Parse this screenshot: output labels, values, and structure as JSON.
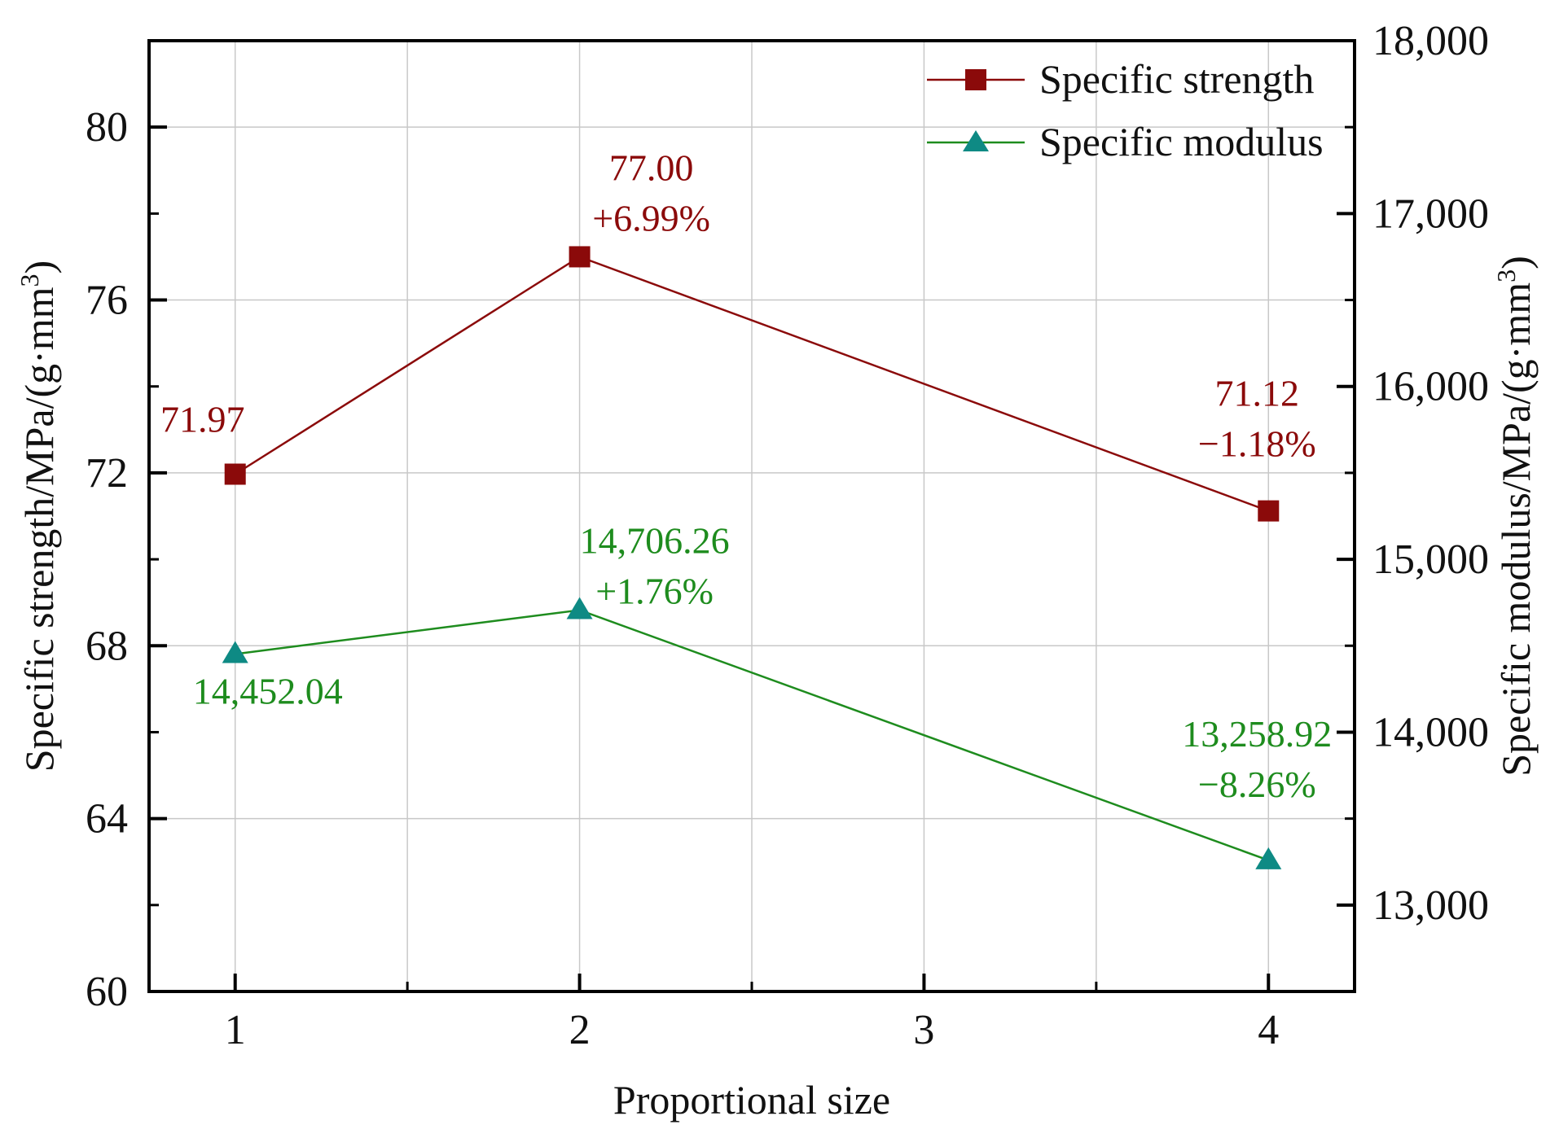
{
  "chart_data": {
    "type": "line",
    "title": "",
    "xlabel": "Proportional size",
    "ylabel_left": "Specific strength/MPa/(g·mm",
    "ylabel_left_sup": "3",
    "ylabel_left_close": ")",
    "ylabel_right": "Specific modulus/MPa/(g·mm",
    "ylabel_right_sup": "3",
    "ylabel_right_close": ")",
    "x": [
      1,
      2,
      4
    ],
    "xlim": [
      0.75,
      4.25
    ],
    "xticks": [
      1,
      2,
      3,
      4
    ],
    "xtick_labels": [
      "1",
      "2",
      "3",
      "4"
    ],
    "ylim_left": [
      60,
      82
    ],
    "yticks_left": [
      60,
      64,
      68,
      72,
      76,
      80
    ],
    "ytick_labels_left": [
      "60",
      "64",
      "68",
      "72",
      "76",
      "80"
    ],
    "ylim_right": [
      12500,
      18000
    ],
    "yticks_right": [
      13000,
      14000,
      15000,
      16000,
      17000,
      18000
    ],
    "ytick_labels_right": [
      "13,000",
      "14,000",
      "15,000",
      "16,000",
      "17,000",
      "18,000"
    ],
    "grid": true,
    "legend_position": "top-right",
    "series": [
      {
        "name": "Specific strength",
        "axis": "left",
        "marker": "square",
        "color": "#8B0A0A",
        "values": [
          71.97,
          77.0,
          71.12
        ],
        "labels": [
          [
            "71.97"
          ],
          [
            "77.00",
            "+6.99%"
          ],
          [
            "71.12",
            "−1.18%"
          ]
        ]
      },
      {
        "name": "Specific modulus",
        "axis": "right",
        "marker": "triangle",
        "color": "#0E8A84",
        "line_color": "#1E8C1E",
        "label_color": "#1E8C1E",
        "values": [
          14452.04,
          14706.26,
          13258.92
        ],
        "labels": [
          [
            "14,452.04"
          ],
          [
            "14,706.26",
            "+1.76%"
          ],
          [
            "13,258.92",
            "−8.26%"
          ]
        ]
      }
    ]
  }
}
